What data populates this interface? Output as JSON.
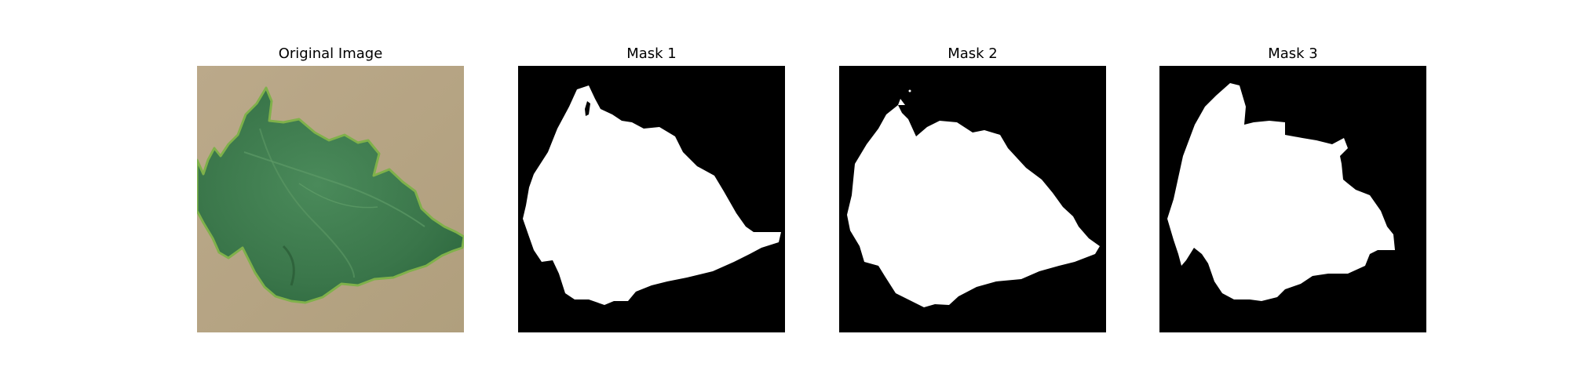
{
  "panels": [
    {
      "title": "Original Image"
    },
    {
      "title": "Mask 1"
    },
    {
      "title": "Mask 2"
    },
    {
      "title": "Mask 3"
    }
  ],
  "colors": {
    "background": "#ffffff",
    "cardboard": "#b7a786",
    "leaf": "#3f7c4e",
    "leaf_edge": "#7fb14a",
    "mask_background": "#000000",
    "mask_foreground": "#ffffff"
  }
}
